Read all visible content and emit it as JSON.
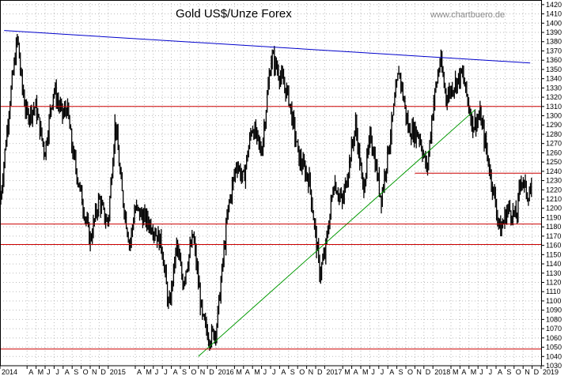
{
  "chart_data": {
    "type": "line",
    "style": "ohlc-bars",
    "title": "Gold US$/Unze Forex",
    "watermark": "www.chartbuero.de",
    "ylim": [
      1030,
      1425
    ],
    "y_axis_side": "right",
    "y_ticks": [
      1030,
      1040,
      1050,
      1060,
      1070,
      1080,
      1090,
      1100,
      1110,
      1120,
      1130,
      1140,
      1150,
      1160,
      1170,
      1180,
      1190,
      1200,
      1210,
      1220,
      1230,
      1240,
      1250,
      1260,
      1270,
      1280,
      1290,
      1300,
      1310,
      1320,
      1330,
      1340,
      1350,
      1360,
      1370,
      1380,
      1390,
      1400,
      1410,
      1420
    ],
    "x_range": [
      "2014-01",
      "2019-01"
    ],
    "x_ticks": [
      {
        "label": "2014",
        "month": 0
      },
      {
        "label": "A",
        "month": 3
      },
      {
        "label": "M",
        "month": 4
      },
      {
        "label": "J",
        "month": 5
      },
      {
        "label": "J",
        "month": 6
      },
      {
        "label": "A",
        "month": 7
      },
      {
        "label": "S",
        "month": 8
      },
      {
        "label": "O",
        "month": 9
      },
      {
        "label": "N",
        "month": 10
      },
      {
        "label": "D",
        "month": 11
      },
      {
        "label": "2015",
        "month": 12
      },
      {
        "label": "A",
        "month": 15
      },
      {
        "label": "M",
        "month": 16
      },
      {
        "label": "J",
        "month": 17
      },
      {
        "label": "J",
        "month": 18
      },
      {
        "label": "A",
        "month": 19
      },
      {
        "label": "S",
        "month": 20
      },
      {
        "label": "O",
        "month": 21
      },
      {
        "label": "N",
        "month": 22
      },
      {
        "label": "D",
        "month": 23
      },
      {
        "label": "2016",
        "month": 24
      },
      {
        "label": "M",
        "month": 26
      },
      {
        "label": "A",
        "month": 27
      },
      {
        "label": "M",
        "month": 28
      },
      {
        "label": "J",
        "month": 29
      },
      {
        "label": "J",
        "month": 30
      },
      {
        "label": "A",
        "month": 31
      },
      {
        "label": "S",
        "month": 32
      },
      {
        "label": "O",
        "month": 33
      },
      {
        "label": "N",
        "month": 34
      },
      {
        "label": "D",
        "month": 35
      },
      {
        "label": "2017",
        "month": 36
      },
      {
        "label": "M",
        "month": 38
      },
      {
        "label": "A",
        "month": 39
      },
      {
        "label": "M",
        "month": 40
      },
      {
        "label": "J",
        "month": 41
      },
      {
        "label": "J",
        "month": 42
      },
      {
        "label": "A",
        "month": 43
      },
      {
        "label": "S",
        "month": 44
      },
      {
        "label": "O",
        "month": 45
      },
      {
        "label": "N",
        "month": 46
      },
      {
        "label": "D",
        "month": 47
      },
      {
        "label": "2018",
        "month": 48
      },
      {
        "label": "M",
        "month": 50
      },
      {
        "label": "A",
        "month": 51
      },
      {
        "label": "M",
        "month": 52
      },
      {
        "label": "J",
        "month": 53
      },
      {
        "label": "J",
        "month": 54
      },
      {
        "label": "A",
        "month": 55
      },
      {
        "label": "S",
        "month": 56
      },
      {
        "label": "O",
        "month": 57
      },
      {
        "label": "N",
        "month": 58
      },
      {
        "label": "D",
        "month": 59
      },
      {
        "label": "2019",
        "month": 60
      }
    ],
    "series": [
      {
        "values": [
          [
            "2014-01-01",
            1205
          ],
          [
            "2014-02-01",
            1310
          ],
          [
            "2014-03-01",
            1385
          ],
          [
            "2014-03-15",
            1335
          ],
          [
            "2014-04-01",
            1300
          ],
          [
            "2014-05-01",
            1310
          ],
          [
            "2014-06-01",
            1260
          ],
          [
            "2014-07-01",
            1330
          ],
          [
            "2014-07-15",
            1315
          ],
          [
            "2014-08-01",
            1300
          ],
          [
            "2014-08-15",
            1310
          ],
          [
            "2014-09-01",
            1265
          ],
          [
            "2014-10-01",
            1215
          ],
          [
            "2014-11-01",
            1165
          ],
          [
            "2014-12-01",
            1210
          ],
          [
            "2014-12-20",
            1190
          ],
          [
            "2015-01-01",
            1185
          ],
          [
            "2015-01-25",
            1295
          ],
          [
            "2015-02-15",
            1220
          ],
          [
            "2015-03-15",
            1160
          ],
          [
            "2015-04-01",
            1200
          ],
          [
            "2015-05-01",
            1190
          ],
          [
            "2015-06-01",
            1180
          ],
          [
            "2015-07-01",
            1160
          ],
          [
            "2015-07-25",
            1090
          ],
          [
            "2015-08-20",
            1160
          ],
          [
            "2015-09-10",
            1120
          ],
          [
            "2015-10-15",
            1170
          ],
          [
            "2015-11-15",
            1080
          ],
          [
            "2015-12-10",
            1060
          ],
          [
            "2016-01-01",
            1070
          ],
          [
            "2016-02-10",
            1200
          ],
          [
            "2016-03-10",
            1250
          ],
          [
            "2016-04-01",
            1230
          ],
          [
            "2016-05-01",
            1290
          ],
          [
            "2016-06-01",
            1260
          ],
          [
            "2016-07-05",
            1365
          ],
          [
            "2016-08-01",
            1345
          ],
          [
            "2016-09-01",
            1320
          ],
          [
            "2016-10-05",
            1255
          ],
          [
            "2016-11-10",
            1230
          ],
          [
            "2016-12-15",
            1130
          ],
          [
            "2017-01-01",
            1150
          ],
          [
            "2017-02-01",
            1230
          ],
          [
            "2017-03-01",
            1205
          ],
          [
            "2017-04-15",
            1290
          ],
          [
            "2017-05-10",
            1220
          ],
          [
            "2017-06-05",
            1280
          ],
          [
            "2017-07-10",
            1210
          ],
          [
            "2017-08-15",
            1290
          ],
          [
            "2017-09-08",
            1350
          ],
          [
            "2017-10-10",
            1285
          ],
          [
            "2017-11-15",
            1280
          ],
          [
            "2017-12-12",
            1240
          ],
          [
            "2018-01-01",
            1310
          ],
          [
            "2018-01-25",
            1360
          ],
          [
            "2018-02-15",
            1320
          ],
          [
            "2018-03-15",
            1335
          ],
          [
            "2018-04-10",
            1345
          ],
          [
            "2018-05-15",
            1290
          ],
          [
            "2018-06-10",
            1300
          ],
          [
            "2018-07-15",
            1235
          ],
          [
            "2018-08-16",
            1175
          ],
          [
            "2018-09-10",
            1200
          ],
          [
            "2018-10-10",
            1190
          ],
          [
            "2018-10-25",
            1235
          ],
          [
            "2018-11-15",
            1215
          ],
          [
            "2018-12-01",
            1220
          ]
        ]
      }
    ],
    "lines": [
      {
        "kind": "trendline",
        "color": "#0000cc",
        "from": [
          "2014-01-15",
          1392
        ],
        "to": [
          "2018-11-25",
          1357
        ]
      },
      {
        "kind": "trendline",
        "color": "#009900",
        "from": [
          "2015-11-01",
          1040
        ],
        "to": [
          "2018-05-25",
          1307
        ]
      },
      {
        "kind": "horizontal",
        "color": "#cc0000",
        "y": 1310,
        "from": "2014-01-01",
        "to": "2019-01-01"
      },
      {
        "kind": "horizontal",
        "color": "#cc0000",
        "y": 1238,
        "from": "2017-11-01",
        "to": "2019-01-01"
      },
      {
        "kind": "horizontal",
        "color": "#cc0000",
        "y": 1183,
        "from": "2014-01-01",
        "to": "2019-01-01"
      },
      {
        "kind": "horizontal",
        "color": "#cc0000",
        "y": 1161,
        "from": "2014-01-01",
        "to": "2019-01-01"
      },
      {
        "kind": "horizontal",
        "color": "#cc0000",
        "y": 1048,
        "from": "2014-01-01",
        "to": "2019-01-01"
      }
    ],
    "grid": true
  }
}
